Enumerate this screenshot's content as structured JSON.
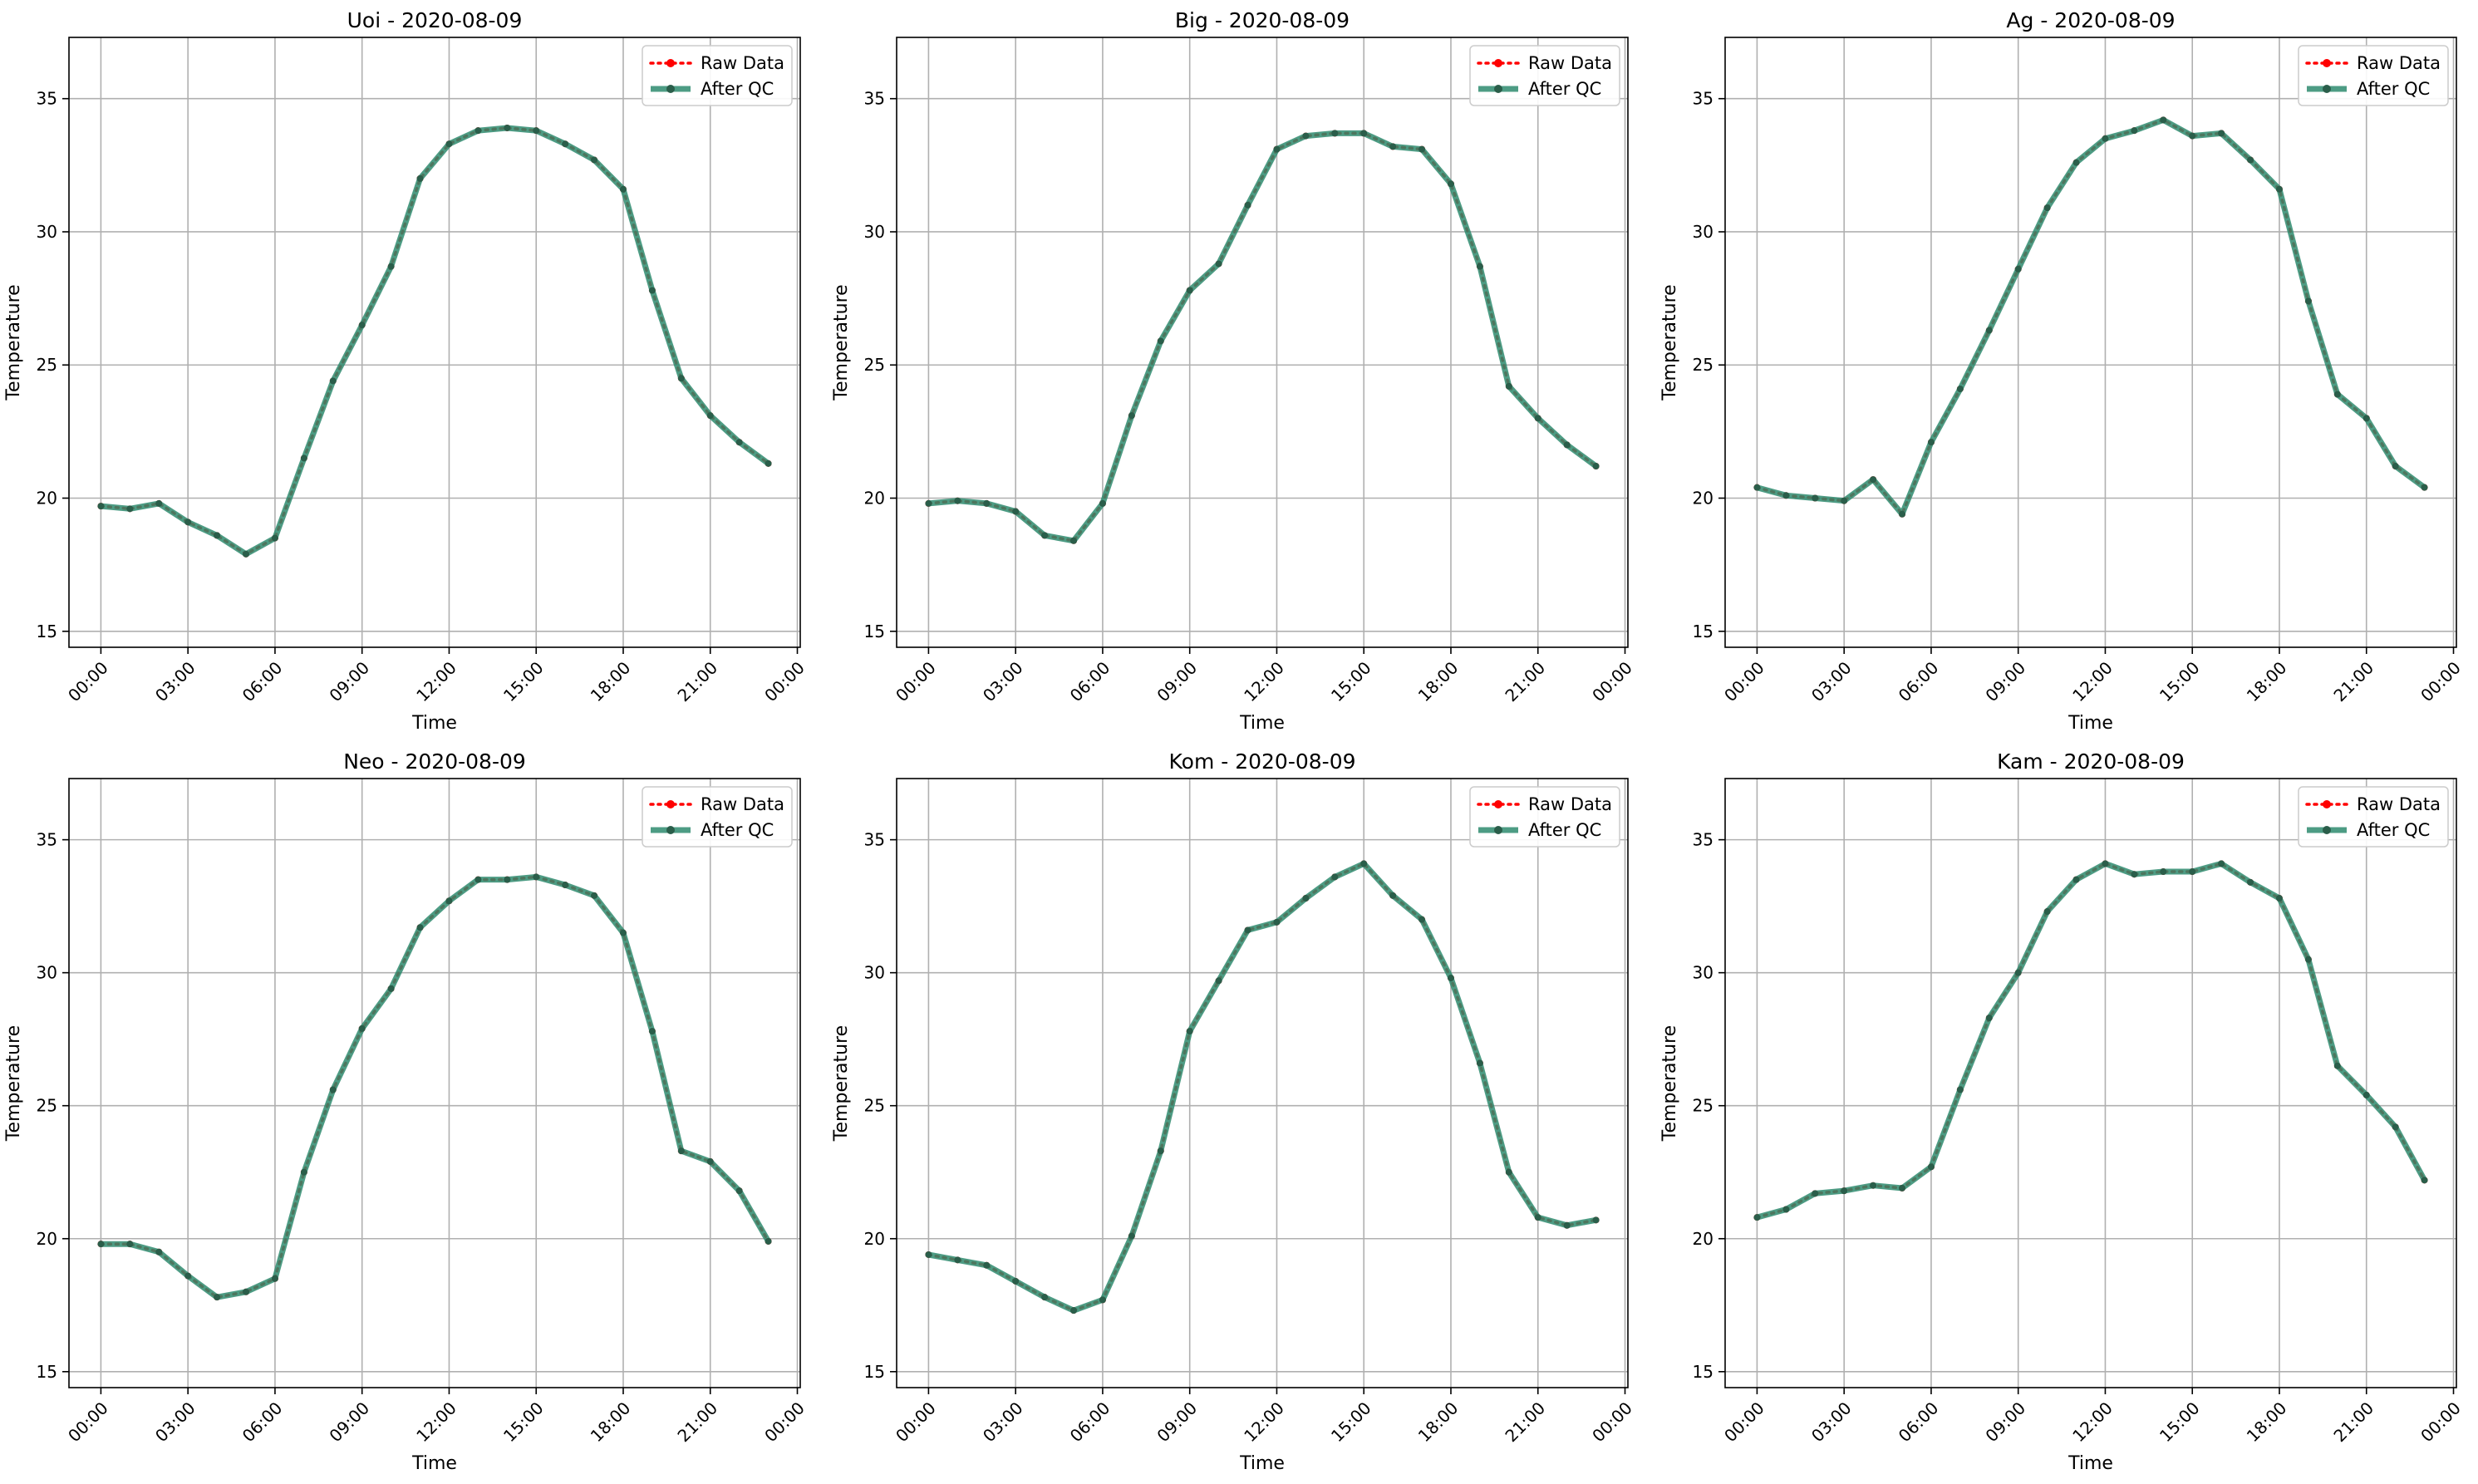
{
  "colors": {
    "raw": "#ff0000",
    "qc": "#2e8b6e",
    "qc_marker": "#2a5e4a",
    "grid": "#b0b0b0",
    "axes": "#000000",
    "legend_border": "#cccccc"
  },
  "legend": {
    "raw_label": "Raw Data",
    "qc_label": "After QC"
  },
  "chart_data": [
    {
      "type": "line",
      "title": "Uoi - 2020-08-09",
      "xlabel": "Time",
      "ylabel": "Temperature",
      "xlim": [
        -1.1,
        24.1
      ],
      "ylim": [
        14.4,
        37.3
      ],
      "x_tick_values": [
        0,
        3,
        6,
        9,
        12,
        15,
        18,
        21,
        24
      ],
      "x_tick_labels": [
        "00:00",
        "03:00",
        "06:00",
        "09:00",
        "12:00",
        "15:00",
        "18:00",
        "21:00",
        "00:00"
      ],
      "y_tick_values": [
        15,
        20,
        25,
        30,
        35
      ],
      "y_tick_labels": [
        "15",
        "20",
        "25",
        "30",
        "35"
      ],
      "grid": true,
      "legend_position": "top-right",
      "x": [
        0,
        1,
        2,
        3,
        4,
        5,
        6,
        7,
        8,
        9,
        10,
        11,
        12,
        13,
        14,
        15,
        16,
        17,
        18,
        19,
        20,
        21,
        22,
        23
      ],
      "series": [
        {
          "name": "Raw Data",
          "values": [
            19.7,
            19.6,
            19.8,
            19.1,
            18.6,
            17.9,
            18.5,
            21.5,
            24.4,
            26.5,
            28.7,
            32.0,
            33.3,
            33.8,
            33.9,
            33.8,
            33.3,
            32.7,
            31.6,
            27.8,
            24.5,
            23.1,
            22.1,
            21.3
          ]
        },
        {
          "name": "After QC",
          "values": [
            19.7,
            19.6,
            19.8,
            19.1,
            18.6,
            17.9,
            18.5,
            21.5,
            24.4,
            26.5,
            28.7,
            32.0,
            33.3,
            33.8,
            33.9,
            33.8,
            33.3,
            32.7,
            31.6,
            27.8,
            24.5,
            23.1,
            22.1,
            21.3
          ]
        }
      ]
    },
    {
      "type": "line",
      "title": "Big - 2020-08-09",
      "xlabel": "Time",
      "ylabel": "Temperature",
      "xlim": [
        -1.1,
        24.1
      ],
      "ylim": [
        14.4,
        37.3
      ],
      "x_tick_values": [
        0,
        3,
        6,
        9,
        12,
        15,
        18,
        21,
        24
      ],
      "x_tick_labels": [
        "00:00",
        "03:00",
        "06:00",
        "09:00",
        "12:00",
        "15:00",
        "18:00",
        "21:00",
        "00:00"
      ],
      "y_tick_values": [
        15,
        20,
        25,
        30,
        35
      ],
      "y_tick_labels": [
        "15",
        "20",
        "25",
        "30",
        "35"
      ],
      "grid": true,
      "legend_position": "top-right",
      "x": [
        0,
        1,
        2,
        3,
        4,
        5,
        6,
        7,
        8,
        9,
        10,
        11,
        12,
        13,
        14,
        15,
        16,
        17,
        18,
        19,
        20,
        21,
        22,
        23
      ],
      "series": [
        {
          "name": "Raw Data",
          "values": [
            19.8,
            19.9,
            19.8,
            19.5,
            18.6,
            18.4,
            19.8,
            23.1,
            25.9,
            27.8,
            28.8,
            31.0,
            33.1,
            33.6,
            33.7,
            33.7,
            33.2,
            33.1,
            31.8,
            28.7,
            24.2,
            23.0,
            22.0,
            21.2
          ]
        },
        {
          "name": "After QC",
          "values": [
            19.8,
            19.9,
            19.8,
            19.5,
            18.6,
            18.4,
            19.8,
            23.1,
            25.9,
            27.8,
            28.8,
            31.0,
            33.1,
            33.6,
            33.7,
            33.7,
            33.2,
            33.1,
            31.8,
            28.7,
            24.2,
            23.0,
            22.0,
            21.2
          ]
        }
      ]
    },
    {
      "type": "line",
      "title": "Ag - 2020-08-09",
      "xlabel": "Time",
      "ylabel": "Temperature",
      "xlim": [
        -1.1,
        24.1
      ],
      "ylim": [
        14.4,
        37.3
      ],
      "x_tick_values": [
        0,
        3,
        6,
        9,
        12,
        15,
        18,
        21,
        24
      ],
      "x_tick_labels": [
        "00:00",
        "03:00",
        "06:00",
        "09:00",
        "12:00",
        "15:00",
        "18:00",
        "21:00",
        "00:00"
      ],
      "y_tick_values": [
        15,
        20,
        25,
        30,
        35
      ],
      "y_tick_labels": [
        "15",
        "20",
        "25",
        "30",
        "35"
      ],
      "grid": true,
      "legend_position": "top-right",
      "x": [
        0,
        1,
        2,
        3,
        4,
        5,
        6,
        7,
        8,
        9,
        10,
        11,
        12,
        13,
        14,
        15,
        16,
        17,
        18,
        19,
        20,
        21,
        22,
        23
      ],
      "series": [
        {
          "name": "Raw Data",
          "values": [
            20.4,
            20.1,
            20.0,
            19.9,
            20.7,
            19.4,
            22.1,
            24.1,
            26.3,
            28.6,
            30.9,
            32.6,
            33.5,
            33.8,
            34.2,
            33.6,
            33.7,
            32.7,
            31.6,
            27.4,
            23.9,
            23.0,
            21.2,
            20.4
          ]
        },
        {
          "name": "After QC",
          "values": [
            20.4,
            20.1,
            20.0,
            19.9,
            20.7,
            19.4,
            22.1,
            24.1,
            26.3,
            28.6,
            30.9,
            32.6,
            33.5,
            33.8,
            34.2,
            33.6,
            33.7,
            32.7,
            31.6,
            27.4,
            23.9,
            23.0,
            21.2,
            20.4
          ]
        }
      ]
    },
    {
      "type": "line",
      "title": "Neo - 2020-08-09",
      "xlabel": "Time",
      "ylabel": "Temperature",
      "xlim": [
        -1.1,
        24.1
      ],
      "ylim": [
        14.4,
        37.3
      ],
      "x_tick_values": [
        0,
        3,
        6,
        9,
        12,
        15,
        18,
        21,
        24
      ],
      "x_tick_labels": [
        "00:00",
        "03:00",
        "06:00",
        "09:00",
        "12:00",
        "15:00",
        "18:00",
        "21:00",
        "00:00"
      ],
      "y_tick_values": [
        15,
        20,
        25,
        30,
        35
      ],
      "y_tick_labels": [
        "15",
        "20",
        "25",
        "30",
        "35"
      ],
      "grid": true,
      "legend_position": "top-right",
      "x": [
        0,
        1,
        2,
        3,
        4,
        5,
        6,
        7,
        8,
        9,
        10,
        11,
        12,
        13,
        14,
        15,
        16,
        17,
        18,
        19,
        20,
        21,
        22,
        23
      ],
      "series": [
        {
          "name": "Raw Data",
          "values": [
            19.8,
            19.8,
            19.5,
            18.6,
            17.8,
            18.0,
            18.5,
            22.5,
            25.6,
            27.9,
            29.4,
            31.7,
            32.7,
            33.5,
            33.5,
            33.6,
            33.3,
            32.9,
            31.5,
            27.8,
            23.3,
            22.9,
            21.8,
            19.9
          ]
        },
        {
          "name": "After QC",
          "values": [
            19.8,
            19.8,
            19.5,
            18.6,
            17.8,
            18.0,
            18.5,
            22.5,
            25.6,
            27.9,
            29.4,
            31.7,
            32.7,
            33.5,
            33.5,
            33.6,
            33.3,
            32.9,
            31.5,
            27.8,
            23.3,
            22.9,
            21.8,
            19.9
          ]
        }
      ]
    },
    {
      "type": "line",
      "title": "Kom - 2020-08-09",
      "xlabel": "Time",
      "ylabel": "Temperature",
      "xlim": [
        -1.1,
        24.1
      ],
      "ylim": [
        14.4,
        37.3
      ],
      "x_tick_values": [
        0,
        3,
        6,
        9,
        12,
        15,
        18,
        21,
        24
      ],
      "x_tick_labels": [
        "00:00",
        "03:00",
        "06:00",
        "09:00",
        "12:00",
        "15:00",
        "18:00",
        "21:00",
        "00:00"
      ],
      "y_tick_values": [
        15,
        20,
        25,
        30,
        35
      ],
      "y_tick_labels": [
        "15",
        "20",
        "25",
        "30",
        "35"
      ],
      "grid": true,
      "legend_position": "top-right",
      "x": [
        0,
        1,
        2,
        3,
        4,
        5,
        6,
        7,
        8,
        9,
        10,
        11,
        12,
        13,
        14,
        15,
        16,
        17,
        18,
        19,
        20,
        21,
        22,
        23
      ],
      "series": [
        {
          "name": "Raw Data",
          "values": [
            19.4,
            19.2,
            19.0,
            18.4,
            17.8,
            17.3,
            17.7,
            20.1,
            23.3,
            27.8,
            29.7,
            31.6,
            31.9,
            32.8,
            33.6,
            34.1,
            32.9,
            32.0,
            29.8,
            26.6,
            22.5,
            20.8,
            20.5,
            20.7
          ]
        },
        {
          "name": "After QC",
          "values": [
            19.4,
            19.2,
            19.0,
            18.4,
            17.8,
            17.3,
            17.7,
            20.1,
            23.3,
            27.8,
            29.7,
            31.6,
            31.9,
            32.8,
            33.6,
            34.1,
            32.9,
            32.0,
            29.8,
            26.6,
            22.5,
            20.8,
            20.5,
            20.7
          ]
        }
      ]
    },
    {
      "type": "line",
      "title": "Kam - 2020-08-09",
      "xlabel": "Time",
      "ylabel": "Temperature",
      "xlim": [
        -1.1,
        24.1
      ],
      "ylim": [
        14.4,
        37.3
      ],
      "x_tick_values": [
        0,
        3,
        6,
        9,
        12,
        15,
        18,
        21,
        24
      ],
      "x_tick_labels": [
        "00:00",
        "03:00",
        "06:00",
        "09:00",
        "12:00",
        "15:00",
        "18:00",
        "21:00",
        "00:00"
      ],
      "y_tick_values": [
        15,
        20,
        25,
        30,
        35
      ],
      "y_tick_labels": [
        "15",
        "20",
        "25",
        "30",
        "35"
      ],
      "grid": true,
      "legend_position": "top-right",
      "x": [
        0,
        1,
        2,
        3,
        4,
        5,
        6,
        7,
        8,
        9,
        10,
        11,
        12,
        13,
        14,
        15,
        16,
        17,
        18,
        19,
        20,
        21,
        22,
        23
      ],
      "series": [
        {
          "name": "Raw Data",
          "values": [
            20.8,
            21.1,
            21.7,
            21.8,
            22.0,
            21.9,
            22.7,
            25.6,
            28.3,
            30.0,
            32.3,
            33.5,
            34.1,
            33.7,
            33.8,
            33.8,
            34.1,
            33.4,
            32.8,
            30.5,
            26.5,
            25.4,
            24.2,
            22.2
          ]
        },
        {
          "name": "After QC",
          "values": [
            20.8,
            21.1,
            21.7,
            21.8,
            22.0,
            21.9,
            22.7,
            25.6,
            28.3,
            30.0,
            32.3,
            33.5,
            34.1,
            33.7,
            33.8,
            33.8,
            34.1,
            33.4,
            32.8,
            30.5,
            26.5,
            25.4,
            24.2,
            22.2
          ]
        }
      ]
    }
  ]
}
